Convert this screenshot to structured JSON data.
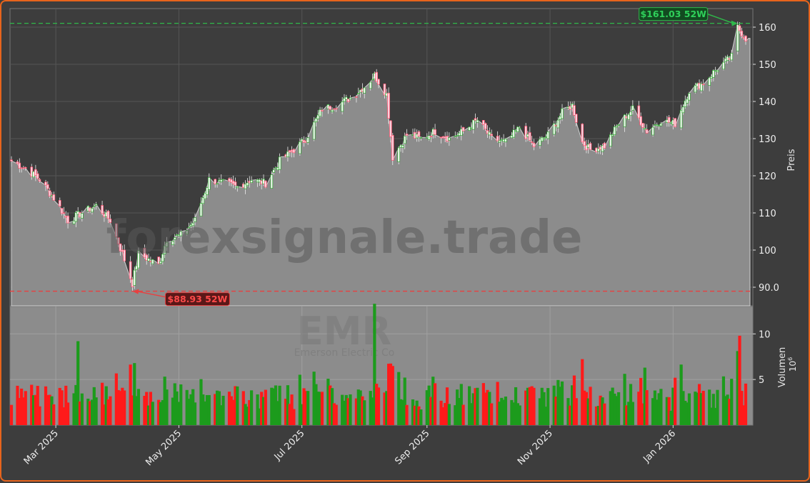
{
  "chart_data": {
    "type": "candlestick",
    "ticker": "EMR",
    "company": "Emerson Electric Co",
    "watermark": "forexsignale.trade",
    "ylabel": "Preis",
    "volume_label": "Volumen",
    "volume_unit": "10",
    "volume_unit_exp": "6",
    "ylim": [
      85,
      165
    ],
    "volume_ylim": [
      0,
      13
    ],
    "grid": true,
    "x_ticks": [
      "Mar 2025",
      "May 2025",
      "Jul 2025",
      "Sep 2025",
      "Nov 2025",
      "Jan 2026"
    ],
    "x_tick_dates": [
      "2025-03-01",
      "2025-05-01",
      "2025-07-01",
      "2025-09-01",
      "2025-11-01",
      "2026-01-01"
    ],
    "y_ticks": [
      "90.0",
      "100",
      "110",
      "120",
      "130",
      "140",
      "150",
      "160"
    ],
    "y_tick_values": [
      90,
      100,
      110,
      120,
      130,
      140,
      150,
      160
    ],
    "volume_ticks": [
      "5",
      "10"
    ],
    "volume_tick_values": [
      5,
      10
    ],
    "x_range": [
      "2025-02-07",
      "2026-02-06"
    ],
    "annotations": {
      "high": {
        "label": "$161.03 52W",
        "value": 161.03,
        "date": "2026-02-02"
      },
      "low": {
        "label": "$88.93 52W",
        "value": 88.93,
        "date": "2025-04-08"
      }
    },
    "last_close": 157,
    "series_anchors": [
      {
        "date": "2025-02-07",
        "close": 124
      },
      {
        "date": "2025-02-14",
        "close": 122
      },
      {
        "date": "2025-02-21",
        "close": 119
      },
      {
        "date": "2025-02-28",
        "close": 114
      },
      {
        "date": "2025-03-07",
        "close": 108
      },
      {
        "date": "2025-03-14",
        "close": 110
      },
      {
        "date": "2025-03-21",
        "close": 112
      },
      {
        "date": "2025-03-28",
        "close": 108
      },
      {
        "date": "2025-04-03",
        "close": 99
      },
      {
        "date": "2025-04-08",
        "close": 91
      },
      {
        "date": "2025-04-11",
        "close": 99
      },
      {
        "date": "2025-04-21",
        "close": 96
      },
      {
        "date": "2025-04-25",
        "close": 103
      },
      {
        "date": "2025-05-02",
        "close": 104
      },
      {
        "date": "2025-05-09",
        "close": 108
      },
      {
        "date": "2025-05-16",
        "close": 119
      },
      {
        "date": "2025-05-23",
        "close": 118
      },
      {
        "date": "2025-05-30",
        "close": 117
      },
      {
        "date": "2025-06-06",
        "close": 119
      },
      {
        "date": "2025-06-13",
        "close": 118
      },
      {
        "date": "2025-06-20",
        "close": 124
      },
      {
        "date": "2025-06-27",
        "close": 127
      },
      {
        "date": "2025-07-03",
        "close": 130
      },
      {
        "date": "2025-07-11",
        "close": 138
      },
      {
        "date": "2025-07-18",
        "close": 139
      },
      {
        "date": "2025-07-25",
        "close": 141
      },
      {
        "date": "2025-08-01",
        "close": 144
      },
      {
        "date": "2025-08-06",
        "close": 147
      },
      {
        "date": "2025-08-12",
        "close": 142
      },
      {
        "date": "2025-08-15",
        "close": 125
      },
      {
        "date": "2025-08-22",
        "close": 131
      },
      {
        "date": "2025-08-29",
        "close": 130
      },
      {
        "date": "2025-09-05",
        "close": 132
      },
      {
        "date": "2025-09-12",
        "close": 130
      },
      {
        "date": "2025-09-19",
        "close": 132
      },
      {
        "date": "2025-09-26",
        "close": 135
      },
      {
        "date": "2025-10-03",
        "close": 130
      },
      {
        "date": "2025-10-10",
        "close": 129
      },
      {
        "date": "2025-10-17",
        "close": 133
      },
      {
        "date": "2025-10-24",
        "close": 128
      },
      {
        "date": "2025-10-31",
        "close": 131
      },
      {
        "date": "2025-11-07",
        "close": 137
      },
      {
        "date": "2025-11-12",
        "close": 139
      },
      {
        "date": "2025-11-17",
        "close": 129
      },
      {
        "date": "2025-11-21",
        "close": 127
      },
      {
        "date": "2025-11-28",
        "close": 128
      },
      {
        "date": "2025-12-05",
        "close": 134
      },
      {
        "date": "2025-12-12",
        "close": 138
      },
      {
        "date": "2025-12-19",
        "close": 132
      },
      {
        "date": "2025-12-26",
        "close": 135
      },
      {
        "date": "2026-01-02",
        "close": 134
      },
      {
        "date": "2026-01-09",
        "close": 143
      },
      {
        "date": "2026-01-16",
        "close": 145
      },
      {
        "date": "2026-01-23",
        "close": 149
      },
      {
        "date": "2026-01-30",
        "close": 152
      },
      {
        "date": "2026-02-02",
        "close": 160
      },
      {
        "date": "2026-02-06",
        "close": 157
      }
    ],
    "volume_notable": [
      {
        "date": "2025-03-12",
        "volume": 9.2
      },
      {
        "date": "2025-04-09",
        "volume": 6.8
      },
      {
        "date": "2025-08-06",
        "volume": 13.3
      },
      {
        "date": "2025-12-18",
        "volume": 6.3
      },
      {
        "date": "2026-02-03",
        "volume": 9.8
      }
    ],
    "colors": {
      "up": "#1c9b1c",
      "down": "#ff1a1a",
      "high_line": "#2fb84a",
      "low_line": "#e84040",
      "area": "#8c8c8c",
      "background": "#3d3d3d",
      "accent": "#e8641c"
    }
  }
}
